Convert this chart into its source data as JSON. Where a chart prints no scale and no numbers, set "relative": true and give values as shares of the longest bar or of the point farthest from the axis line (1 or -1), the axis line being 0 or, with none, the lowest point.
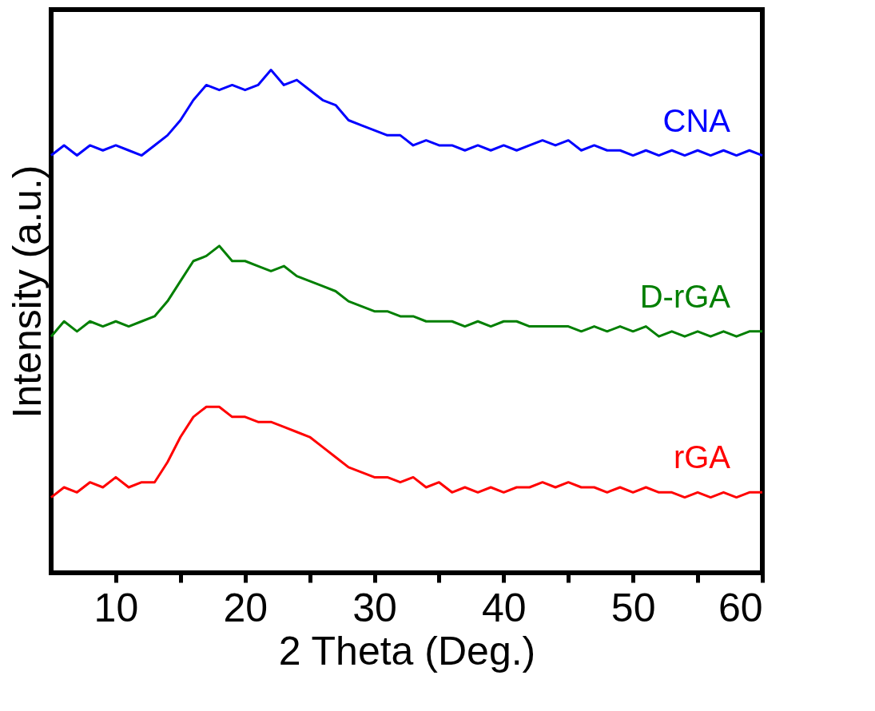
{
  "chart_data": {
    "type": "line",
    "xlabel": "2 Theta (Deg.)",
    "ylabel": "Intensity (a.u.)",
    "relative": true,
    "x": [
      5,
      6,
      7,
      8,
      9,
      10,
      11,
      12,
      13,
      14,
      15,
      16,
      17,
      18,
      19,
      20,
      21,
      22,
      23,
      24,
      25,
      26,
      27,
      28,
      29,
      30,
      31,
      32,
      33,
      34,
      35,
      36,
      37,
      38,
      39,
      40,
      41,
      42,
      43,
      44,
      45,
      46,
      47,
      48,
      49,
      50,
      51,
      52,
      53,
      54,
      55,
      56,
      57,
      58,
      59,
      60
    ],
    "xlim": [
      5,
      60
    ],
    "xticks": [
      10,
      {
        "value": 15,
        "label": null
      },
      20,
      {
        "value": 25,
        "label": null
      },
      30,
      {
        "value": 35,
        "label": null
      },
      40,
      {
        "value": 45,
        "label": null
      },
      50,
      {
        "value": 55,
        "label": null
      },
      60
    ],
    "grid": false,
    "marker": "none",
    "line_style": "solid",
    "series": [
      {
        "name": "CNA",
        "color": "#0000ff",
        "values": [
          0.83,
          0.85,
          0.83,
          0.85,
          0.84,
          0.85,
          0.84,
          0.83,
          0.85,
          0.87,
          0.9,
          0.94,
          0.97,
          0.96,
          0.97,
          0.96,
          0.97,
          1.0,
          0.97,
          0.98,
          0.96,
          0.94,
          0.93,
          0.9,
          0.89,
          0.88,
          0.87,
          0.87,
          0.85,
          0.86,
          0.85,
          0.85,
          0.84,
          0.85,
          0.84,
          0.85,
          0.84,
          0.85,
          0.86,
          0.85,
          0.86,
          0.84,
          0.85,
          0.84,
          0.84,
          0.83,
          0.84,
          0.83,
          0.84,
          0.83,
          0.84,
          0.83,
          0.84,
          0.83,
          0.84,
          0.83
        ]
      },
      {
        "name": "D-rGA",
        "color": "#007f00",
        "values": [
          0.47,
          0.5,
          0.48,
          0.5,
          0.49,
          0.5,
          0.49,
          0.5,
          0.51,
          0.54,
          0.58,
          0.62,
          0.63,
          0.65,
          0.62,
          0.62,
          0.61,
          0.6,
          0.61,
          0.59,
          0.58,
          0.57,
          0.56,
          0.54,
          0.53,
          0.52,
          0.52,
          0.51,
          0.51,
          0.5,
          0.5,
          0.5,
          0.49,
          0.5,
          0.49,
          0.5,
          0.5,
          0.49,
          0.49,
          0.49,
          0.49,
          0.48,
          0.49,
          0.48,
          0.49,
          0.48,
          0.49,
          0.47,
          0.48,
          0.47,
          0.48,
          0.47,
          0.48,
          0.47,
          0.48,
          0.48
        ]
      },
      {
        "name": "rGA",
        "color": "#ff0000",
        "values": [
          0.15,
          0.17,
          0.16,
          0.18,
          0.17,
          0.19,
          0.17,
          0.18,
          0.18,
          0.22,
          0.27,
          0.31,
          0.33,
          0.33,
          0.31,
          0.31,
          0.3,
          0.3,
          0.29,
          0.28,
          0.27,
          0.25,
          0.23,
          0.21,
          0.2,
          0.19,
          0.19,
          0.18,
          0.19,
          0.17,
          0.18,
          0.16,
          0.17,
          0.16,
          0.17,
          0.16,
          0.17,
          0.17,
          0.18,
          0.17,
          0.18,
          0.17,
          0.17,
          0.16,
          0.17,
          0.16,
          0.17,
          0.16,
          0.16,
          0.15,
          0.16,
          0.15,
          0.16,
          0.15,
          0.16,
          0.16
        ]
      }
    ]
  }
}
